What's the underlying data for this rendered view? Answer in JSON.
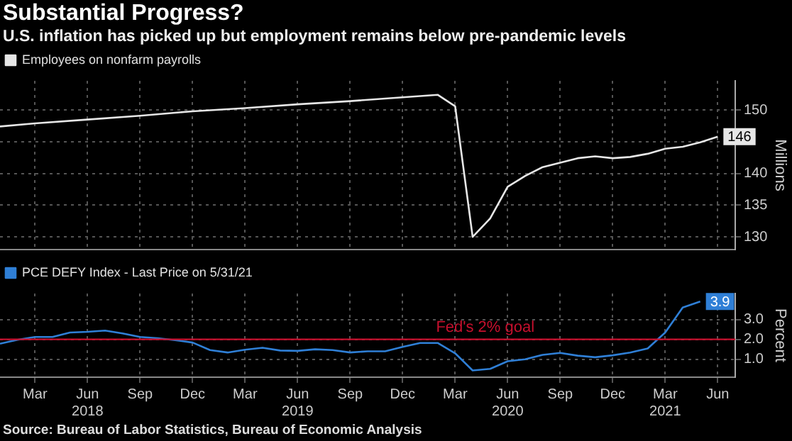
{
  "chart_data": [
    {
      "type": "line",
      "title": "Substantial Progress?",
      "subtitle": "U.S. inflation has picked up but employment remains below pre-pandemic levels",
      "ylabel": "Millions",
      "legend": "top left",
      "grid": true,
      "tick_labels": "y",
      "marker": "none",
      "line_style": "solid",
      "xlim": [
        "2018-01",
        "2021-07"
      ],
      "ylim": [
        128,
        154.6
      ],
      "yticks": [
        130,
        135,
        140,
        {
          "value": 145,
          "label": null
        },
        150
      ],
      "xticks": [
        {
          "value": "2018-03",
          "label": null
        },
        {
          "value": "2018-06",
          "label": null
        },
        {
          "value": "2018-09",
          "label": null
        },
        {
          "value": "2018-12",
          "label": null
        },
        {
          "value": "2019-03",
          "label": null
        },
        {
          "value": "2019-06",
          "label": null
        },
        {
          "value": "2019-09",
          "label": null
        },
        {
          "value": "2019-12",
          "label": null
        },
        {
          "value": "2020-03",
          "label": null
        },
        {
          "value": "2020-06",
          "label": null
        },
        {
          "value": "2020-09",
          "label": null
        },
        {
          "value": "2020-12",
          "label": null
        },
        {
          "value": "2021-03",
          "label": null
        },
        {
          "value": "2021-06",
          "label": null
        }
      ],
      "series": [
        {
          "name": "Employees on nonfarm payrolls",
          "color": "#e6e6e6",
          "x": [
            "2018-01",
            "2018-03",
            "2018-06",
            "2018-09",
            "2018-12",
            "2019-03",
            "2019-06",
            "2019-09",
            "2019-12",
            "2020-02",
            "2020-03",
            "2020-04",
            "2020-05",
            "2020-06",
            "2020-07",
            "2020-08",
            "2020-09",
            "2020-10",
            "2020-11",
            "2020-12",
            "2021-01",
            "2021-02",
            "2021-03",
            "2021-04",
            "2021-05",
            "2021-06"
          ],
          "values": [
            147.4,
            147.9,
            148.5,
            149.1,
            149.8,
            150.3,
            150.9,
            151.4,
            152.0,
            152.4,
            150.6,
            130.0,
            132.9,
            137.9,
            139.6,
            141.0,
            141.7,
            142.4,
            142.7,
            142.4,
            142.6,
            143.1,
            143.9,
            144.2,
            144.9,
            145.8
          ],
          "value_labels": [
            null,
            null,
            null,
            null,
            null,
            null,
            null,
            null,
            null,
            null,
            null,
            null,
            null,
            null,
            null,
            null,
            null,
            null,
            null,
            null,
            null,
            null,
            null,
            null,
            null,
            "146"
          ]
        }
      ]
    },
    {
      "type": "line",
      "ylabel": "Percent",
      "legend": "top left",
      "grid": true,
      "marker": "none",
      "line_style": "solid",
      "xlim": [
        "2018-01",
        "2021-07"
      ],
      "ylim": [
        0.1,
        4.3
      ],
      "yticks": [
        {
          "value": 1,
          "label": "1.0"
        },
        {
          "value": 2,
          "label": "2.0"
        },
        {
          "value": 3,
          "label": "3.0"
        }
      ],
      "xticks": [
        {
          "value": "2018-03",
          "label": "Mar"
        },
        {
          "value": "2018-06",
          "label": "Jun\n2018"
        },
        {
          "value": "2018-09",
          "label": "Sep"
        },
        {
          "value": "2018-12",
          "label": "Dec"
        },
        {
          "value": "2019-03",
          "label": "Mar"
        },
        {
          "value": "2019-06",
          "label": "Jun\n2019"
        },
        {
          "value": "2019-09",
          "label": "Sep"
        },
        {
          "value": "2019-12",
          "label": "Dec"
        },
        {
          "value": "2020-03",
          "label": "Mar"
        },
        {
          "value": "2020-06",
          "label": "Jun\n2020"
        },
        {
          "value": "2020-09",
          "label": "Sep"
        },
        {
          "value": "2020-12",
          "label": "Dec"
        },
        {
          "value": "2021-03",
          "label": "Mar\n2021"
        },
        {
          "value": "2021-06",
          "label": "Jun"
        }
      ],
      "ref_lines": [
        {
          "axis": "y",
          "value": 2,
          "label": "Fed's 2% goal",
          "color": "#c8102e"
        }
      ],
      "annotations": [
        "Source: Bureau of Labor Statistics, Bureau of Economic Analysis"
      ],
      "series": [
        {
          "name": "PCE DEFY Index - Last Price on 5/31/21",
          "color": "#2f7fd6",
          "x": [
            "2018-01",
            "2018-02",
            "2018-03",
            "2018-04",
            "2018-05",
            "2018-06",
            "2018-07",
            "2018-08",
            "2018-09",
            "2018-10",
            "2018-11",
            "2018-12",
            "2019-01",
            "2019-02",
            "2019-03",
            "2019-04",
            "2019-05",
            "2019-06",
            "2019-07",
            "2019-08",
            "2019-09",
            "2019-10",
            "2019-11",
            "2019-12",
            "2020-01",
            "2020-02",
            "2020-03",
            "2020-04",
            "2020-05",
            "2020-06",
            "2020-07",
            "2020-08",
            "2020-09",
            "2020-10",
            "2020-11",
            "2020-12",
            "2021-01",
            "2021-02",
            "2021-03",
            "2021-04",
            "2021-05"
          ],
          "values": [
            1.78,
            1.98,
            2.12,
            2.12,
            2.34,
            2.38,
            2.44,
            2.3,
            2.12,
            2.06,
            1.96,
            1.84,
            1.46,
            1.34,
            1.48,
            1.58,
            1.44,
            1.42,
            1.5,
            1.46,
            1.34,
            1.4,
            1.4,
            1.62,
            1.82,
            1.82,
            1.3,
            0.44,
            0.52,
            0.9,
            1.0,
            1.22,
            1.32,
            1.18,
            1.1,
            1.2,
            1.34,
            1.54,
            2.34,
            3.6,
            3.9
          ],
          "value_labels": [
            null,
            null,
            null,
            null,
            null,
            null,
            null,
            null,
            null,
            null,
            null,
            null,
            null,
            null,
            null,
            null,
            null,
            null,
            null,
            null,
            null,
            null,
            null,
            null,
            null,
            null,
            null,
            null,
            null,
            null,
            null,
            null,
            null,
            null,
            null,
            null,
            null,
            null,
            null,
            null,
            "3.9"
          ]
        }
      ]
    }
  ]
}
